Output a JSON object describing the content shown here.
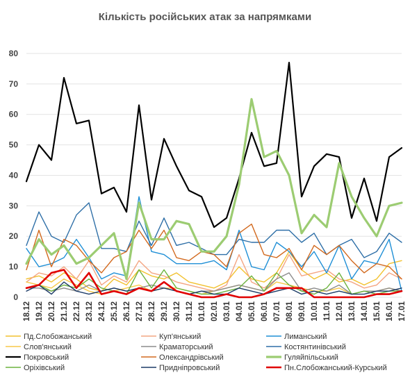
{
  "chart_data": {
    "type": "line",
    "title": "Кількість російських атак за напрямками",
    "ylim": [
      0,
      85
    ],
    "yticks": [
      0,
      10,
      20,
      30,
      40,
      50,
      60,
      70,
      80
    ],
    "grid": true,
    "legend_position": "bottom",
    "categories": [
      "18.12",
      "19.12",
      "20.12",
      "21.12",
      "22.12",
      "23.12",
      "24.12",
      "25.12",
      "26.12",
      "27.12",
      "28.12",
      "29.12",
      "30.12",
      "31.12",
      "01.01",
      "02.01",
      "03.01",
      "04.01",
      "05.01",
      "06.01",
      "07.01",
      "08.01",
      "09.01",
      "10.01",
      "11.01",
      "12.01",
      "13.01",
      "14.01",
      "15.01",
      "16.01",
      "17.01"
    ],
    "xtick_labels": [
      "18.12",
      "19.12",
      "20.12",
      "21.12",
      "22.12",
      "23.12",
      "24.12",
      "25.12",
      "26.12",
      "27.12",
      "28.12",
      "29.12",
      "30.12",
      "31.12",
      "01.01",
      "02.01",
      "03.01",
      "04.01",
      "05.01",
      "06.01",
      "07.01",
      "08.01",
      "09.01",
      "10.01",
      "11.01",
      "12.01",
      "13.01",
      "14.01",
      "15.01",
      "16.01",
      "17.01"
    ],
    "series": [
      {
        "name": "Пд.Слобожанський",
        "color": "#f2c12e",
        "width": 1.4,
        "values": [
          6,
          7,
          5,
          8,
          6,
          3,
          2,
          6,
          4,
          9,
          7,
          6,
          8,
          5,
          4,
          3,
          5,
          10,
          6,
          5,
          8,
          15,
          9,
          6,
          8,
          5,
          6,
          4,
          6,
          11,
          12
        ]
      },
      {
        "name": "Куп'янський",
        "color": "#f4a582",
        "width": 1.4,
        "values": [
          5,
          8,
          7,
          10,
          6,
          12,
          4,
          7,
          5,
          12,
          8,
          7,
          5,
          4,
          3,
          2,
          4,
          14,
          5,
          3,
          6,
          14,
          7,
          8,
          9,
          6,
          5,
          3,
          4,
          8,
          6
        ]
      },
      {
        "name": "Лиманський",
        "color": "#1f8fd6",
        "width": 1.4,
        "values": [
          16,
          10,
          11,
          13,
          19,
          13,
          6,
          8,
          7,
          33,
          15,
          14,
          11,
          11,
          11,
          12,
          9,
          22,
          10,
          9,
          18,
          15,
          10,
          15,
          8,
          17,
          6,
          12,
          11,
          19,
          2
        ]
      },
      {
        "name": "Слов'янський",
        "color": "#f7c948",
        "width": 1.4,
        "values": [
          5,
          4,
          3,
          6,
          4,
          2,
          1,
          2,
          3,
          4,
          2,
          3,
          3,
          2,
          1,
          2,
          3,
          4,
          3,
          2,
          5,
          4,
          3,
          2,
          2,
          3,
          1,
          2,
          2,
          3,
          2
        ]
      },
      {
        "name": "Краматорський",
        "color": "#8c8c8c",
        "width": 1.4,
        "values": [
          3,
          3,
          2,
          3,
          2,
          4,
          2,
          3,
          2,
          3,
          4,
          3,
          2,
          1,
          2,
          2,
          3,
          4,
          3,
          2,
          6,
          8,
          2,
          3,
          2,
          4,
          1,
          2,
          2,
          3,
          2
        ]
      },
      {
        "name": "Костянтинівський",
        "color": "#2e6fa7",
        "width": 1.4,
        "values": [
          17,
          28,
          20,
          18,
          27,
          31,
          16,
          16,
          15,
          25,
          17,
          26,
          17,
          18,
          16,
          14,
          14,
          19,
          18,
          18,
          22,
          22,
          18,
          21,
          14,
          17,
          19,
          13,
          15,
          21,
          18
        ]
      },
      {
        "name": "Покровський",
        "color": "#000000",
        "width": 2.2,
        "values": [
          38,
          50,
          45,
          72,
          57,
          58,
          34,
          36,
          28,
          63,
          32,
          52,
          43,
          35,
          33,
          23,
          26,
          39,
          54,
          43,
          44,
          77,
          33,
          43,
          47,
          46,
          26,
          39,
          25,
          46,
          49
        ]
      },
      {
        "name": "Олександрівський",
        "color": "#d2691e",
        "width": 1.4,
        "values": [
          9,
          22,
          10,
          19,
          17,
          12,
          8,
          13,
          15,
          22,
          16,
          22,
          13,
          12,
          15,
          14,
          10,
          21,
          24,
          14,
          13,
          16,
          9,
          17,
          14,
          17,
          12,
          8,
          11,
          10,
          6
        ]
      },
      {
        "name": "Гуляйпільський",
        "color": "#9ccc72",
        "width": 3.2,
        "values": [
          11,
          19,
          14,
          17,
          11,
          13,
          17,
          21,
          6,
          31,
          19,
          19,
          25,
          24,
          15,
          15,
          20,
          37,
          65,
          46,
          48,
          40,
          21,
          27,
          23,
          44,
          33,
          26,
          20,
          30,
          31
        ]
      },
      {
        "name": "Оріхівський",
        "color": "#6db33f",
        "width": 1.4,
        "values": [
          3,
          4,
          2,
          4,
          3,
          6,
          3,
          2,
          1,
          9,
          3,
          9,
          3,
          2,
          1,
          1,
          2,
          3,
          7,
          2,
          8,
          4,
          2,
          1,
          3,
          8,
          1,
          2,
          1,
          2,
          2
        ]
      },
      {
        "name": "Придніпровський",
        "color": "#1b3a66",
        "width": 1.4,
        "values": [
          2,
          4,
          1,
          5,
          2,
          1,
          2,
          3,
          2,
          3,
          2,
          3,
          2,
          1,
          2,
          1,
          1,
          3,
          2,
          1,
          2,
          3,
          1,
          2,
          1,
          2,
          1,
          1,
          2,
          2,
          3
        ]
      },
      {
        "name": "Пн.Слобожанський-Курський",
        "color": "#e00000",
        "width": 2.6,
        "values": [
          3,
          4,
          8,
          9,
          3,
          8,
          1,
          2,
          1,
          3,
          2,
          5,
          2,
          1,
          0,
          0,
          1,
          0,
          0,
          1,
          3,
          3,
          3,
          0,
          0,
          0,
          0,
          0,
          1,
          1,
          2
        ]
      }
    ]
  }
}
